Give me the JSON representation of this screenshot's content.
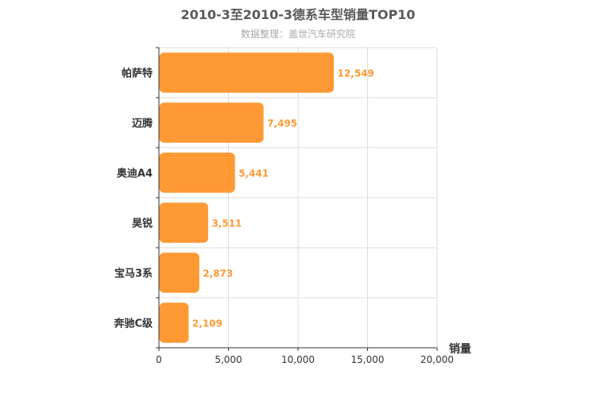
{
  "chart_data": {
    "type": "bar",
    "orientation": "horizontal",
    "title": "2010-3至2010-3德系车型销量TOP10",
    "subtitle": "数据整理：盖世汽车研究院",
    "categories": [
      "帕萨特",
      "迈腾",
      "奥迪A4",
      "昊锐",
      "宝马3系",
      "奔驰C级"
    ],
    "values": [
      12549,
      7495,
      5441,
      3511,
      2873,
      2109
    ],
    "value_labels": [
      "12,549",
      "7,495",
      "5,441",
      "3,511",
      "2,873",
      "2,109"
    ],
    "xlabel": "销量",
    "ylabel": "",
    "xlim": [
      0,
      20000
    ],
    "x_ticks": [
      0,
      5000,
      10000,
      15000,
      20000
    ],
    "x_tick_labels": [
      "0",
      "5,000",
      "10,000",
      "15,000",
      "20,000"
    ],
    "grid": true,
    "bar_color": "#ff9933",
    "label_color": "#ff9933"
  }
}
